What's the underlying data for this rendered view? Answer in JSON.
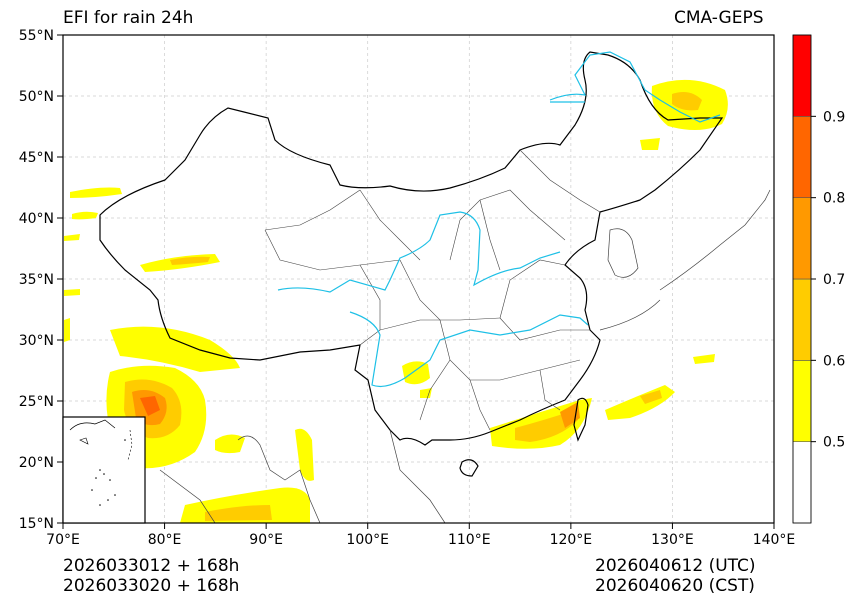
{
  "title_left": "EFI for rain 24h",
  "title_right": "CMA-GEPS",
  "footer": {
    "init_utc": "2026033012 + 168h",
    "init_cst": "2026033020 + 168h",
    "valid_utc": "2026040612 (UTC)",
    "valid_cst": "2026040620 (CST)"
  },
  "map": {
    "lon_range": [
      70,
      140
    ],
    "lat_range": [
      15,
      55
    ],
    "lon_ticks": [
      70,
      80,
      90,
      100,
      110,
      120,
      130,
      140
    ],
    "lat_ticks": [
      15,
      20,
      25,
      30,
      35,
      40,
      45,
      50,
      55
    ],
    "lon_labels": [
      "70°E",
      "80°E",
      "90°E",
      "100°E",
      "110°E",
      "120°E",
      "130°E",
      "140°E"
    ],
    "lat_labels": [
      "15°N",
      "20°N",
      "25°N",
      "30°N",
      "35°N",
      "40°N",
      "45°N",
      "50°N",
      "55°N"
    ],
    "grid": true
  },
  "colorbar": {
    "levels": [
      0.4,
      0.5,
      0.6,
      0.7,
      0.8,
      0.9,
      1.0
    ],
    "colors": [
      "#ffffff",
      "#ffff00",
      "#ffcc00",
      "#ff9900",
      "#ff6600",
      "#ff0000"
    ],
    "tick_labels": [
      "0.5",
      "0.6",
      "0.7",
      "0.8",
      "0.9"
    ]
  },
  "colors": {
    "river": "#1ec0e6",
    "border": "#000000",
    "province": "#333333",
    "grid": "#cccccc"
  }
}
